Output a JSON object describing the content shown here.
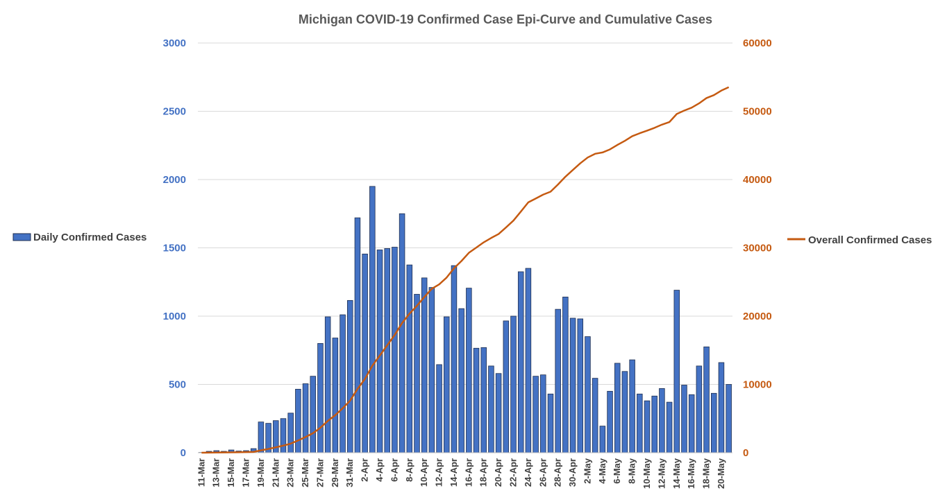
{
  "chart_data": {
    "type": "bar+line",
    "title": "Michigan COVID-19 Confirmed Case Epi-Curve and Cumulative Cases",
    "colors": {
      "bars": "#4472C4",
      "bar_outline": "#1F2F4F",
      "line": "#C55A11",
      "grid": "#D9D9D9",
      "title": "#595959"
    },
    "legend": {
      "bar_series": "Daily Confirmed Cases",
      "line_series": "Overall Confirmed Cases",
      "placement": "left and right of plot"
    },
    "y_left": {
      "range": [
        0,
        3000
      ],
      "ticks": [
        "0",
        "500",
        "1000",
        "1500",
        "2000",
        "2500",
        "3000"
      ]
    },
    "y_right": {
      "range": [
        0,
        60000
      ],
      "ticks": [
        "0",
        "10000",
        "20000",
        "30000",
        "40000",
        "50000",
        "60000"
      ]
    },
    "grid": true,
    "x_tick_labels": [
      "11-Mar",
      "13-Mar",
      "15-Mar",
      "17-Mar",
      "19-Mar",
      "21-Mar",
      "23-Mar",
      "25-Mar",
      "27-Mar",
      "29-Mar",
      "31-Mar",
      "2-Apr",
      "4-Apr",
      "6-Apr",
      "8-Apr",
      "10-Apr",
      "12-Apr",
      "14-Apr",
      "16-Apr",
      "18-Apr",
      "20-Apr",
      "22-Apr",
      "24-Apr",
      "26-Apr",
      "28-Apr",
      "30-Apr",
      "2-May",
      "4-May",
      "6-May",
      "8-May",
      "10-May",
      "12-May",
      "14-May",
      "16-May",
      "18-May",
      "20-May"
    ],
    "series": [
      {
        "name": "Daily Confirmed Cases",
        "type": "bar",
        "axis": "left",
        "values": [
          2,
          10,
          15,
          10,
          20,
          12,
          15,
          30,
          225,
          215,
          235,
          250,
          290,
          465,
          505,
          560,
          800,
          995,
          840,
          1010,
          1115,
          1720,
          1455,
          1950,
          1485,
          1495,
          1505,
          1750,
          1375,
          1160,
          1280,
          1210,
          645,
          995,
          1370,
          1055,
          1205,
          765,
          770,
          635,
          580,
          965,
          1000,
          1325,
          1350,
          560,
          570,
          430,
          1050,
          1140,
          985,
          980,
          850,
          545,
          195,
          450,
          655,
          595,
          680,
          430,
          380,
          415,
          470,
          370,
          1190,
          495,
          425,
          635,
          775,
          435,
          660,
          500
        ]
      },
      {
        "name": "Overall Confirmed Cases",
        "type": "line",
        "axis": "right",
        "values": [
          2,
          12,
          27,
          37,
          57,
          69,
          84,
          114,
          339,
          554,
          789,
          1039,
          1329,
          1794,
          2299,
          2859,
          3659,
          4654,
          5494,
          6504,
          7619,
          9339,
          10794,
          12744,
          14229,
          15724,
          17229,
          18979,
          20354,
          21514,
          22794,
          24004,
          24649,
          25644,
          27014,
          28069,
          29274,
          30039,
          30809,
          31444,
          32024,
          32989,
          33989,
          35314,
          36664,
          37224,
          37794,
          38224,
          39274,
          40414,
          41399,
          42379,
          43229,
          43774,
          43969,
          44419,
          45074,
          45669,
          46349,
          46779,
          47159,
          47574,
          48044,
          48414,
          49604,
          50099,
          50524,
          51159,
          51934,
          52369,
          53029,
          53529
        ]
      }
    ]
  }
}
